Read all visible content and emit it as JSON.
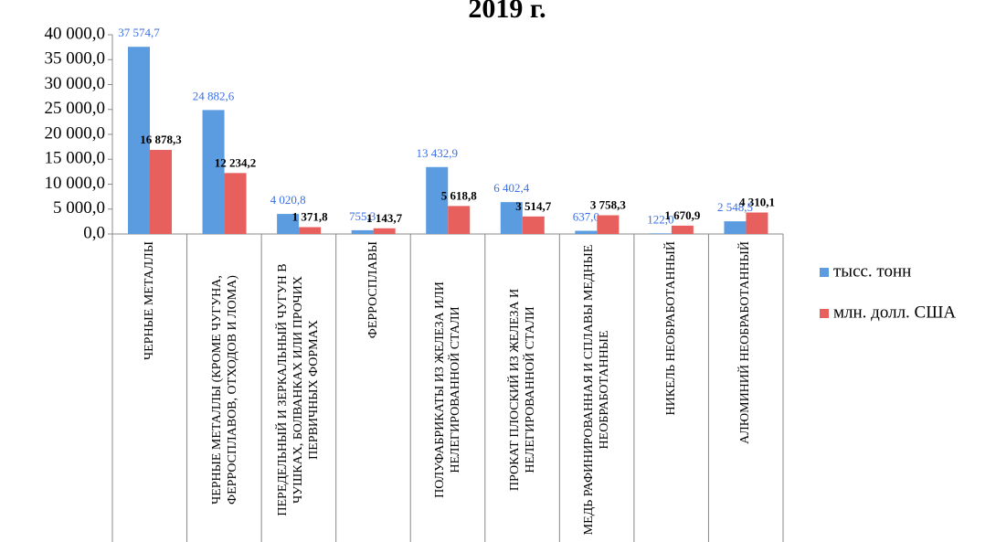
{
  "chart_data": {
    "type": "bar",
    "title": "2019 г.",
    "categories": [
      "ЧЕРНЫЕ МЕТАЛЛЫ",
      "ЧЕРНЫЕ МЕТАЛЛЫ (КРОМЕ ЧУГУНА, ФЕРРОСПЛАВОВ, ОТХОДОВ И ЛОМА)",
      "ПЕРЕДЕЛЬНЫЙ И ЗЕРКАЛЬНЫЙ ЧУГУН В ЧУШКАХ, БОЛВАНКАХ ИЛИ ПРОЧИХ ПЕРВИЧНЫХ ФОРМАХ",
      "ФЕРРОСПЛАВЫ",
      "ПОЛУФАБРИКАТЫ ИЗ ЖЕЛЕЗА ИЛИ НЕЛЕГИРОВАННОЙ СТАЛИ",
      "ПРОКАТ ПЛОСКИЙ ИЗ ЖЕЛЕЗА И НЕЛЕГИРОВАННОЙ СТАЛИ",
      "МЕДЬ РАФИНИРОВАННАЯ И СПЛАВЫ МЕДНЫЕ НЕОБРАБОТАННЫЕ",
      "НИКЕЛЬ НЕОБРАБОТАННЫЙ",
      "АЛЮМИНИЙ НЕОБРАБОТАННЫЙ"
    ],
    "series": [
      {
        "name": "тысс. тонн",
        "color": "#5b9be0",
        "label_color": "#3a6fe8",
        "values": [
          37574.7,
          24882.6,
          4020.8,
          755.3,
          13432.9,
          6402.4,
          637.0,
          122.0,
          2548.5
        ],
        "value_labels": [
          "37 574,7",
          "24 882,6",
          "4 020,8",
          "755,3",
          "13 432,9",
          "6 402,4",
          "637,0",
          "122,0",
          "2 548,5"
        ]
      },
      {
        "name": "млн. долл. США",
        "color": "#e8605e",
        "label_color": "#000000",
        "values": [
          16878.3,
          12234.2,
          1371.8,
          1143.7,
          5618.8,
          3514.7,
          3758.3,
          1670.9,
          4310.1
        ],
        "value_labels": [
          "16 878,3",
          "12 234,2",
          "1 371,8",
          "1 143,7",
          "5 618,8",
          "3 514,7",
          "3 758,3",
          "1 670,9",
          "4 310,1"
        ]
      }
    ],
    "ylim": [
      0,
      40000
    ],
    "yticks": [
      {
        "value": 0,
        "label": "0,0"
      },
      {
        "value": 5000,
        "label": "5 000,0"
      },
      {
        "value": 10000,
        "label": "10 000,0"
      },
      {
        "value": 15000,
        "label": "15 000,0"
      },
      {
        "value": 20000,
        "label": "20 000,0"
      },
      {
        "value": 25000,
        "label": "25 000,0"
      },
      {
        "value": 30000,
        "label": "30 000,0"
      },
      {
        "value": 35000,
        "label": "35 000,0"
      },
      {
        "value": 40000,
        "label": "40 000,0"
      }
    ],
    "legend": "right"
  }
}
